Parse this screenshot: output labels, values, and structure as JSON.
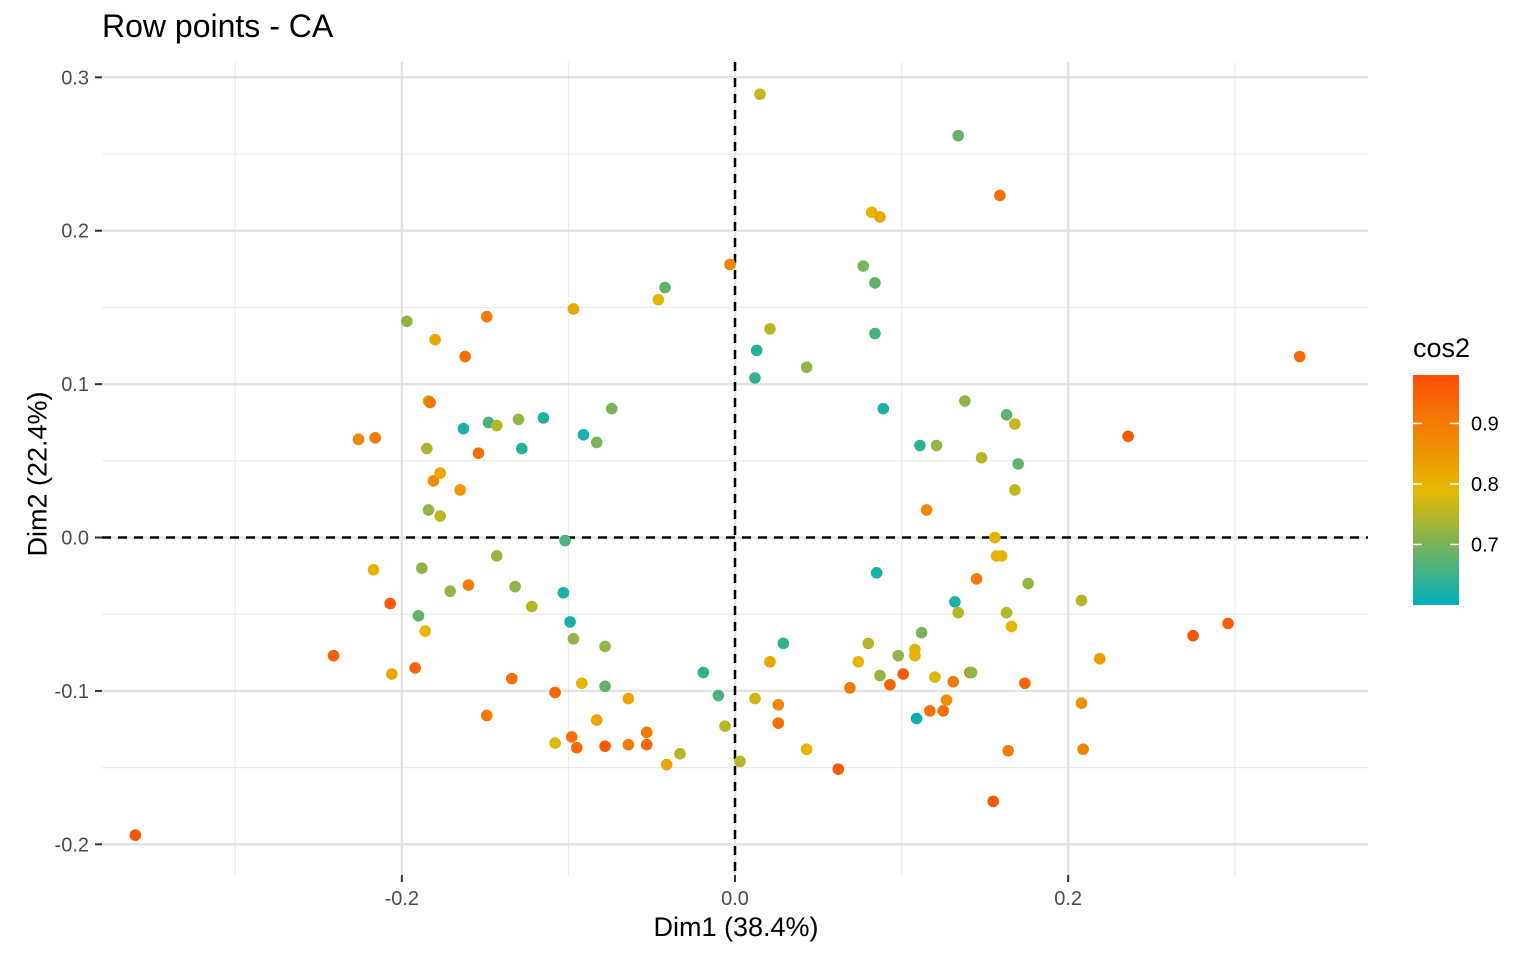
{
  "chart_data": {
    "type": "scatter",
    "title": "Row points - CA",
    "xlabel": "Dim1 (38.4%)",
    "ylabel": "Dim2 (22.4%)",
    "xlim": [
      -0.38,
      0.38
    ],
    "ylim": [
      -0.22,
      0.31
    ],
    "x_ticks": [
      -0.2,
      0.0,
      0.2
    ],
    "x_tick_labels": [
      "-0.2",
      "0.0",
      "0.2"
    ],
    "y_ticks": [
      -0.2,
      -0.1,
      0.0,
      0.1,
      0.2,
      0.3
    ],
    "y_tick_labels": [
      "-0.2",
      "-0.1",
      "0.0",
      "0.1",
      "0.2",
      "0.3"
    ],
    "grid": true,
    "reference_lines": {
      "x": 0,
      "y": 0,
      "style": "dashed"
    },
    "legend": {
      "title": "cos2",
      "placement": "right",
      "range": [
        0.6,
        0.98
      ],
      "ticks": [
        0.7,
        0.8,
        0.9
      ],
      "tick_labels": [
        "0.7",
        "0.8",
        "0.9"
      ],
      "colors": [
        "#00AFBB",
        "#E7B800",
        "#FC4E07"
      ]
    },
    "points": [
      {
        "x": -0.36,
        "y": -0.194,
        "cos2": 0.97
      },
      {
        "x": -0.241,
        "y": -0.077,
        "cos2": 0.95
      },
      {
        "x": -0.226,
        "y": 0.064,
        "cos2": 0.88
      },
      {
        "x": -0.216,
        "y": 0.065,
        "cos2": 0.9
      },
      {
        "x": -0.217,
        "y": -0.021,
        "cos2": 0.8
      },
      {
        "x": -0.207,
        "y": -0.043,
        "cos2": 0.96
      },
      {
        "x": -0.206,
        "y": -0.089,
        "cos2": 0.82
      },
      {
        "x": -0.197,
        "y": 0.141,
        "cos2": 0.72
      },
      {
        "x": -0.192,
        "y": -0.085,
        "cos2": 0.94
      },
      {
        "x": -0.19,
        "y": -0.051,
        "cos2": 0.68
      },
      {
        "x": -0.188,
        "y": -0.02,
        "cos2": 0.72
      },
      {
        "x": -0.186,
        "y": -0.061,
        "cos2": 0.79
      },
      {
        "x": -0.185,
        "y": 0.058,
        "cos2": 0.74
      },
      {
        "x": -0.184,
        "y": 0.018,
        "cos2": 0.72
      },
      {
        "x": -0.184,
        "y": 0.089,
        "cos2": 0.75
      },
      {
        "x": -0.183,
        "y": 0.088,
        "cos2": 0.9
      },
      {
        "x": -0.181,
        "y": 0.037,
        "cos2": 0.87
      },
      {
        "x": -0.18,
        "y": 0.129,
        "cos2": 0.82
      },
      {
        "x": -0.177,
        "y": 0.042,
        "cos2": 0.82
      },
      {
        "x": -0.177,
        "y": 0.014,
        "cos2": 0.75
      },
      {
        "x": -0.171,
        "y": -0.035,
        "cos2": 0.72
      },
      {
        "x": -0.165,
        "y": 0.031,
        "cos2": 0.85
      },
      {
        "x": -0.163,
        "y": 0.071,
        "cos2": 0.62
      },
      {
        "x": -0.162,
        "y": 0.118,
        "cos2": 0.92
      },
      {
        "x": -0.16,
        "y": -0.031,
        "cos2": 0.9
      },
      {
        "x": -0.154,
        "y": 0.055,
        "cos2": 0.92
      },
      {
        "x": -0.149,
        "y": 0.144,
        "cos2": 0.9
      },
      {
        "x": -0.149,
        "y": -0.116,
        "cos2": 0.9
      },
      {
        "x": -0.148,
        "y": 0.075,
        "cos2": 0.66
      },
      {
        "x": -0.143,
        "y": 0.073,
        "cos2": 0.75
      },
      {
        "x": -0.143,
        "y": -0.012,
        "cos2": 0.72
      },
      {
        "x": -0.134,
        "y": -0.092,
        "cos2": 0.92
      },
      {
        "x": -0.132,
        "y": -0.032,
        "cos2": 0.72
      },
      {
        "x": -0.13,
        "y": 0.077,
        "cos2": 0.72
      },
      {
        "x": -0.128,
        "y": 0.058,
        "cos2": 0.63
      },
      {
        "x": -0.122,
        "y": -0.045,
        "cos2": 0.75
      },
      {
        "x": -0.115,
        "y": 0.078,
        "cos2": 0.62
      },
      {
        "x": -0.108,
        "y": -0.134,
        "cos2": 0.78
      },
      {
        "x": -0.108,
        "y": -0.101,
        "cos2": 0.94
      },
      {
        "x": -0.103,
        "y": -0.036,
        "cos2": 0.62
      },
      {
        "x": -0.102,
        "y": -0.002,
        "cos2": 0.66
      },
      {
        "x": -0.099,
        "y": -0.055,
        "cos2": 0.62
      },
      {
        "x": -0.098,
        "y": -0.13,
        "cos2": 0.92
      },
      {
        "x": -0.097,
        "y": 0.149,
        "cos2": 0.82
      },
      {
        "x": -0.097,
        "y": -0.066,
        "cos2": 0.72
      },
      {
        "x": -0.095,
        "y": -0.137,
        "cos2": 0.93
      },
      {
        "x": -0.092,
        "y": -0.095,
        "cos2": 0.8
      },
      {
        "x": -0.091,
        "y": 0.067,
        "cos2": 0.62
      },
      {
        "x": -0.083,
        "y": 0.062,
        "cos2": 0.7
      },
      {
        "x": -0.083,
        "y": -0.119,
        "cos2": 0.82
      },
      {
        "x": -0.078,
        "y": -0.071,
        "cos2": 0.72
      },
      {
        "x": -0.078,
        "y": -0.097,
        "cos2": 0.68
      },
      {
        "x": -0.078,
        "y": -0.136,
        "cos2": 0.96
      },
      {
        "x": -0.074,
        "y": 0.084,
        "cos2": 0.7
      },
      {
        "x": -0.064,
        "y": -0.105,
        "cos2": 0.82
      },
      {
        "x": -0.064,
        "y": -0.135,
        "cos2": 0.9
      },
      {
        "x": -0.053,
        "y": -0.127,
        "cos2": 0.9
      },
      {
        "x": -0.053,
        "y": -0.135,
        "cos2": 0.94
      },
      {
        "x": -0.046,
        "y": 0.155,
        "cos2": 0.8
      },
      {
        "x": -0.042,
        "y": 0.163,
        "cos2": 0.68
      },
      {
        "x": -0.041,
        "y": -0.148,
        "cos2": 0.82
      },
      {
        "x": -0.033,
        "y": -0.141,
        "cos2": 0.75
      },
      {
        "x": -0.019,
        "y": -0.088,
        "cos2": 0.64
      },
      {
        "x": -0.01,
        "y": -0.103,
        "cos2": 0.66
      },
      {
        "x": -0.006,
        "y": -0.123,
        "cos2": 0.75
      },
      {
        "x": -0.003,
        "y": 0.178,
        "cos2": 0.88
      },
      {
        "x": 0.003,
        "y": -0.146,
        "cos2": 0.75
      },
      {
        "x": 0.012,
        "y": -0.105,
        "cos2": 0.77
      },
      {
        "x": 0.012,
        "y": 0.104,
        "cos2": 0.64
      },
      {
        "x": 0.013,
        "y": 0.122,
        "cos2": 0.63
      },
      {
        "x": 0.015,
        "y": 0.289,
        "cos2": 0.76
      },
      {
        "x": 0.021,
        "y": -0.081,
        "cos2": 0.82
      },
      {
        "x": 0.021,
        "y": 0.136,
        "cos2": 0.75
      },
      {
        "x": 0.026,
        "y": -0.109,
        "cos2": 0.88
      },
      {
        "x": 0.026,
        "y": -0.121,
        "cos2": 0.92
      },
      {
        "x": 0.029,
        "y": -0.069,
        "cos2": 0.64
      },
      {
        "x": 0.043,
        "y": 0.111,
        "cos2": 0.72
      },
      {
        "x": 0.043,
        "y": -0.138,
        "cos2": 0.8
      },
      {
        "x": 0.062,
        "y": -0.151,
        "cos2": 0.96
      },
      {
        "x": 0.069,
        "y": -0.098,
        "cos2": 0.9
      },
      {
        "x": 0.074,
        "y": -0.081,
        "cos2": 0.8
      },
      {
        "x": 0.077,
        "y": 0.177,
        "cos2": 0.7
      },
      {
        "x": 0.08,
        "y": -0.069,
        "cos2": 0.75
      },
      {
        "x": 0.082,
        "y": 0.212,
        "cos2": 0.8
      },
      {
        "x": 0.084,
        "y": 0.166,
        "cos2": 0.68
      },
      {
        "x": 0.084,
        "y": 0.133,
        "cos2": 0.66
      },
      {
        "x": 0.085,
        "y": -0.023,
        "cos2": 0.62
      },
      {
        "x": 0.087,
        "y": 0.209,
        "cos2": 0.82
      },
      {
        "x": 0.087,
        "y": -0.09,
        "cos2": 0.72
      },
      {
        "x": 0.089,
        "y": 0.084,
        "cos2": 0.62
      },
      {
        "x": 0.093,
        "y": -0.096,
        "cos2": 0.94
      },
      {
        "x": 0.098,
        "y": -0.077,
        "cos2": 0.72
      },
      {
        "x": 0.101,
        "y": -0.089,
        "cos2": 0.96
      },
      {
        "x": 0.108,
        "y": -0.073,
        "cos2": 0.78
      },
      {
        "x": 0.108,
        "y": -0.077,
        "cos2": 0.8
      },
      {
        "x": 0.109,
        "y": -0.118,
        "cos2": 0.61
      },
      {
        "x": 0.111,
        "y": 0.06,
        "cos2": 0.64
      },
      {
        "x": 0.112,
        "y": -0.062,
        "cos2": 0.7
      },
      {
        "x": 0.115,
        "y": 0.018,
        "cos2": 0.88
      },
      {
        "x": 0.117,
        "y": -0.113,
        "cos2": 0.92
      },
      {
        "x": 0.12,
        "y": -0.091,
        "cos2": 0.78
      },
      {
        "x": 0.121,
        "y": 0.06,
        "cos2": 0.72
      },
      {
        "x": 0.125,
        "y": -0.113,
        "cos2": 0.92
      },
      {
        "x": 0.127,
        "y": -0.106,
        "cos2": 0.86
      },
      {
        "x": 0.131,
        "y": -0.094,
        "cos2": 0.9
      },
      {
        "x": 0.132,
        "y": -0.042,
        "cos2": 0.62
      },
      {
        "x": 0.134,
        "y": 0.262,
        "cos2": 0.68
      },
      {
        "x": 0.134,
        "y": -0.049,
        "cos2": 0.75
      },
      {
        "x": 0.138,
        "y": 0.089,
        "cos2": 0.72
      },
      {
        "x": 0.141,
        "y": -0.088,
        "cos2": 0.92
      },
      {
        "x": 0.142,
        "y": -0.088,
        "cos2": 0.72
      },
      {
        "x": 0.145,
        "y": -0.027,
        "cos2": 0.9
      },
      {
        "x": 0.148,
        "y": 0.052,
        "cos2": 0.75
      },
      {
        "x": 0.155,
        "y": -0.172,
        "cos2": 0.96
      },
      {
        "x": 0.156,
        "y": 0.0,
        "cos2": 0.8
      },
      {
        "x": 0.157,
        "y": -0.012,
        "cos2": 0.8
      },
      {
        "x": 0.159,
        "y": 0.223,
        "cos2": 0.92
      },
      {
        "x": 0.16,
        "y": -0.012,
        "cos2": 0.8
      },
      {
        "x": 0.163,
        "y": 0.08,
        "cos2": 0.68
      },
      {
        "x": 0.163,
        "y": -0.049,
        "cos2": 0.75
      },
      {
        "x": 0.164,
        "y": -0.139,
        "cos2": 0.9
      },
      {
        "x": 0.166,
        "y": -0.058,
        "cos2": 0.8
      },
      {
        "x": 0.168,
        "y": 0.031,
        "cos2": 0.76
      },
      {
        "x": 0.168,
        "y": 0.074,
        "cos2": 0.76
      },
      {
        "x": 0.17,
        "y": 0.048,
        "cos2": 0.68
      },
      {
        "x": 0.174,
        "y": -0.095,
        "cos2": 0.94
      },
      {
        "x": 0.176,
        "y": -0.03,
        "cos2": 0.72
      },
      {
        "x": 0.208,
        "y": -0.108,
        "cos2": 0.86
      },
      {
        "x": 0.208,
        "y": -0.041,
        "cos2": 0.75
      },
      {
        "x": 0.209,
        "y": -0.138,
        "cos2": 0.88
      },
      {
        "x": 0.219,
        "y": -0.079,
        "cos2": 0.84
      },
      {
        "x": 0.236,
        "y": 0.066,
        "cos2": 0.96
      },
      {
        "x": 0.275,
        "y": -0.064,
        "cos2": 0.97
      },
      {
        "x": 0.296,
        "y": -0.056,
        "cos2": 0.95
      },
      {
        "x": 0.339,
        "y": 0.118,
        "cos2": 0.93
      }
    ]
  }
}
